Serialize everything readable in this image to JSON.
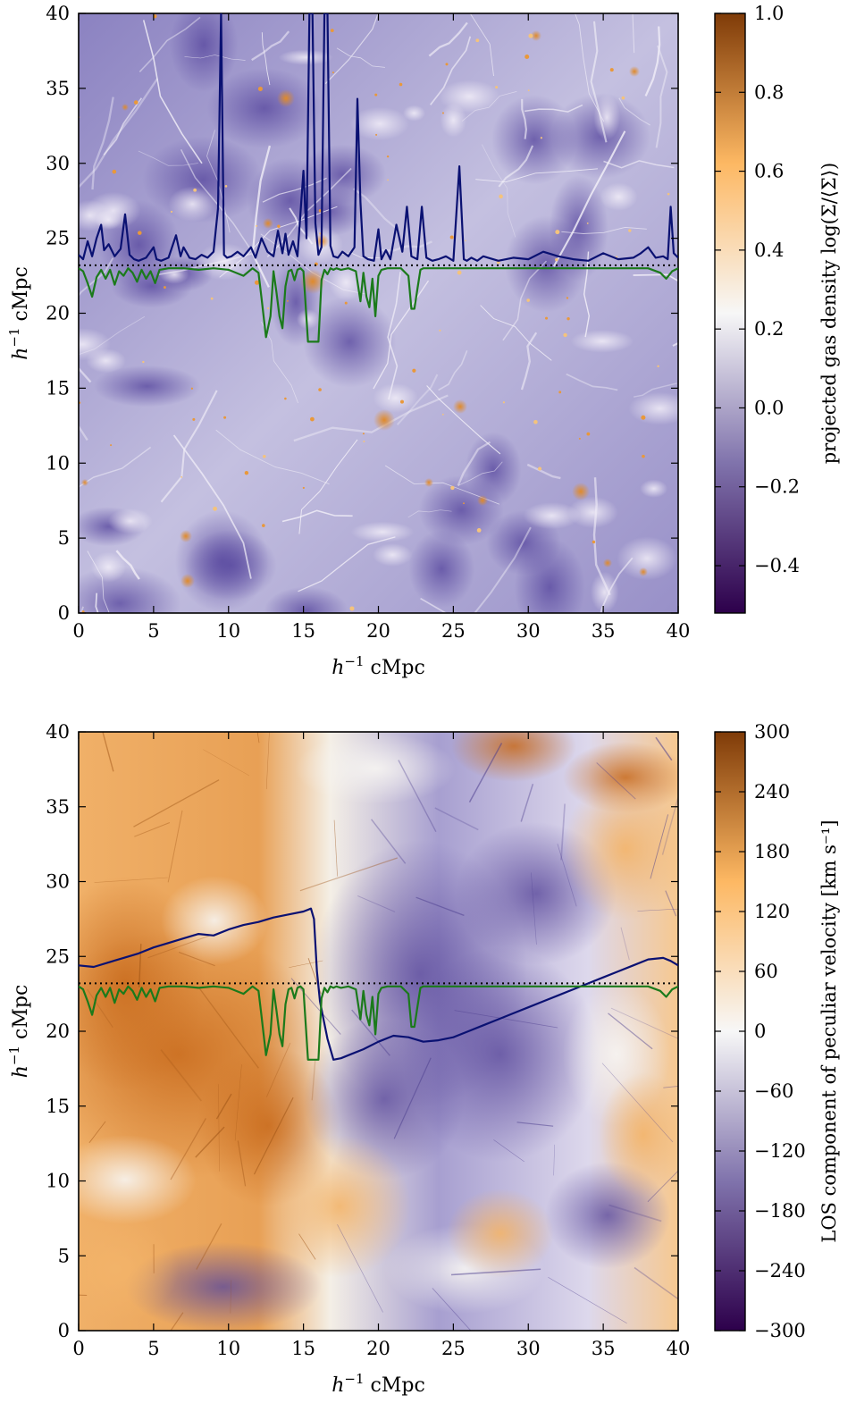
{
  "chart_data": [
    {
      "type": "heatmap",
      "title": "",
      "xlabel": "h^{-1} cMpc",
      "ylabel": "h^{-1} cMpc",
      "xlim": [
        0,
        40
      ],
      "ylim": [
        0,
        40
      ],
      "xticks": [
        "0",
        "5",
        "10",
        "15",
        "20",
        "25",
        "30",
        "35",
        "40"
      ],
      "yticks": [
        "0",
        "5",
        "10",
        "15",
        "20",
        "25",
        "30",
        "35",
        "40"
      ],
      "colorbar": {
        "label": "projected gas density log(Σ/⟨Σ⟩)",
        "range": [
          -0.52,
          1.0
        ],
        "ticks": [
          "−0.4",
          "−0.2",
          "0.0",
          "0.2",
          "0.4",
          "0.6",
          "0.8",
          "1.0"
        ],
        "tick_values": [
          -0.4,
          -0.2,
          0.0,
          0.2,
          0.4,
          0.6,
          0.8,
          1.0
        ],
        "colors": [
          "#2d004b",
          "#8073ac",
          "#f7f7f7",
          "#fdb863",
          "#7f3b08"
        ]
      },
      "sightline_y": 23.2,
      "series": [
        {
          "color": "#0a1172",
          "x": [
            0,
            0.3,
            0.6,
            0.9,
            1.2,
            1.5,
            1.7,
            2.0,
            2.4,
            2.8,
            3.1,
            3.4,
            3.7,
            4.0,
            4.5,
            5.0,
            5.2,
            5.5,
            6.0,
            6.5,
            6.8,
            7.0,
            7.4,
            7.8,
            8.2,
            8.6,
            9.0,
            9.3,
            9.5,
            9.7,
            9.9,
            10.2,
            10.6,
            11.0,
            11.5,
            11.8,
            12.2,
            12.6,
            13.0,
            13.3,
            13.6,
            13.8,
            14.0,
            14.3,
            14.6,
            15.0,
            15.2,
            15.4,
            15.6,
            15.8,
            16.0,
            16.2,
            16.4,
            16.6,
            16.8,
            17.0,
            17.3,
            17.6,
            18.0,
            18.4,
            18.6,
            18.8,
            19.0,
            19.3,
            19.7,
            20.0,
            20.2,
            20.5,
            20.8,
            21.2,
            21.6,
            21.9,
            22.2,
            22.6,
            22.9,
            23.2,
            23.6,
            24.0,
            24.5,
            25.0,
            25.4,
            25.7,
            25.9,
            26.2,
            26.6,
            27.0,
            28.0,
            29.0,
            30.0,
            31.0,
            32.0,
            33.0,
            34.0,
            35.0,
            36.0,
            37.0,
            37.5,
            38.0,
            38.5,
            39.0,
            39.3,
            39.5,
            39.7,
            40.0
          ],
          "y": [
            23.9,
            23.6,
            24.8,
            23.8,
            25.0,
            25.9,
            24.2,
            24.6,
            23.8,
            24.3,
            26.6,
            23.9,
            23.6,
            23.5,
            23.7,
            24.4,
            23.6,
            23.5,
            23.7,
            25.2,
            23.8,
            24.4,
            23.7,
            23.6,
            23.9,
            23.7,
            24.1,
            27.0,
            40.0,
            23.9,
            23.7,
            23.8,
            24.1,
            23.8,
            24.4,
            23.7,
            25.0,
            24.1,
            23.8,
            25.5,
            24.0,
            25.3,
            23.9,
            24.8,
            23.8,
            29.5,
            25.0,
            40.0,
            40.0,
            26.0,
            23.9,
            24.4,
            40.0,
            40.0,
            24.5,
            23.8,
            23.7,
            24.1,
            23.8,
            24.4,
            34.3,
            27.4,
            23.8,
            23.6,
            23.5,
            25.6,
            23.6,
            24.2,
            23.6,
            25.9,
            24.1,
            27.1,
            23.8,
            23.6,
            27.1,
            23.7,
            23.5,
            23.6,
            23.8,
            23.5,
            29.8,
            23.6,
            23.5,
            23.7,
            23.5,
            23.8,
            23.5,
            23.7,
            23.6,
            24.1,
            23.8,
            23.6,
            23.5,
            24.0,
            23.6,
            23.7,
            24.0,
            24.4,
            23.7,
            23.8,
            23.6,
            27.1,
            24.0,
            23.7
          ]
        },
        {
          "color": "#1b7a1b",
          "x": [
            0,
            0.3,
            0.6,
            0.9,
            1.2,
            1.5,
            1.8,
            2.1,
            2.4,
            2.7,
            3.0,
            3.3,
            3.6,
            3.9,
            4.2,
            4.5,
            4.8,
            5.1,
            5.4,
            6.0,
            7.0,
            8.0,
            9.0,
            10.0,
            11.0,
            11.6,
            12.0,
            12.2,
            12.5,
            12.8,
            13.0,
            13.2,
            13.4,
            13.6,
            13.8,
            14.0,
            14.2,
            14.4,
            14.6,
            14.8,
            15.0,
            15.3,
            15.6,
            15.8,
            16.0,
            16.2,
            16.4,
            16.6,
            16.8,
            17.0,
            17.2,
            17.5,
            18.0,
            18.5,
            18.8,
            19.0,
            19.2,
            19.4,
            19.6,
            19.8,
            20.0,
            20.2,
            20.6,
            21.0,
            21.5,
            22.0,
            22.2,
            22.4,
            22.6,
            22.8,
            23.0,
            23.5,
            24.0,
            26.0,
            28.0,
            30.0,
            32.0,
            34.0,
            36.0,
            38.0,
            38.8,
            39.2,
            39.6,
            40.0
          ],
          "y": [
            23.0,
            22.8,
            22.0,
            21.1,
            22.4,
            22.9,
            22.3,
            22.9,
            21.9,
            22.8,
            22.5,
            23.0,
            22.7,
            22.1,
            22.9,
            22.3,
            22.8,
            22.0,
            22.9,
            23.0,
            23.0,
            22.9,
            23.0,
            22.9,
            22.5,
            23.0,
            22.7,
            21.0,
            18.4,
            19.8,
            22.8,
            21.4,
            19.8,
            19.0,
            21.8,
            22.8,
            22.9,
            22.2,
            22.9,
            23.0,
            22.8,
            18.1,
            18.1,
            18.1,
            18.1,
            22.2,
            22.9,
            22.6,
            23.0,
            22.9,
            23.0,
            22.9,
            23.0,
            22.8,
            20.8,
            22.7,
            21.1,
            20.4,
            22.3,
            19.8,
            22.5,
            22.9,
            23.0,
            23.0,
            23.0,
            22.5,
            20.3,
            20.3,
            21.6,
            22.9,
            23.0,
            23.0,
            23.0,
            23.0,
            23.0,
            23.0,
            23.0,
            23.0,
            23.0,
            23.0,
            22.7,
            22.3,
            22.8,
            23.0
          ]
        }
      ]
    },
    {
      "type": "heatmap",
      "title": "",
      "xlabel": "h^{-1} cMpc",
      "ylabel": "h^{-1} cMpc",
      "xlim": [
        0,
        40
      ],
      "ylim": [
        0,
        40
      ],
      "xticks": [
        "0",
        "5",
        "10",
        "15",
        "20",
        "25",
        "30",
        "35",
        "40"
      ],
      "yticks": [
        "0",
        "5",
        "10",
        "15",
        "20",
        "25",
        "30",
        "35",
        "40"
      ],
      "colorbar": {
        "label": "LOS component of peculiar velocity [km s⁻¹]",
        "range": [
          -300,
          300
        ],
        "ticks": [
          "−300",
          "−240",
          "−180",
          "−120",
          "−60",
          "0",
          "60",
          "120",
          "180",
          "240",
          "300"
        ],
        "tick_values": [
          -300,
          -240,
          -180,
          -120,
          -60,
          0,
          60,
          120,
          180,
          240,
          300
        ],
        "colors": [
          "#2d004b",
          "#8073ac",
          "#f7f7f7",
          "#fdb863",
          "#7f3b08"
        ]
      },
      "sightline_y": 23.2,
      "series": [
        {
          "color": "#0a1172",
          "x": [
            0,
            1,
            2,
            3,
            4,
            5,
            6,
            7,
            8,
            9,
            10,
            11,
            12,
            13,
            14,
            15,
            15.5,
            15.7,
            15.9,
            16.1,
            16.3,
            16.6,
            17,
            17.5,
            18,
            19,
            20,
            21,
            22,
            23,
            24,
            25,
            26,
            27,
            28,
            29,
            30,
            31,
            32,
            33,
            34,
            35,
            36,
            37,
            38,
            39,
            39.5,
            40
          ],
          "y": [
            24.4,
            24.3,
            24.6,
            24.9,
            25.2,
            25.6,
            25.9,
            26.2,
            26.5,
            26.4,
            26.8,
            27.1,
            27.3,
            27.6,
            27.8,
            28.0,
            28.2,
            27.5,
            24.0,
            22.0,
            21.0,
            19.5,
            18.1,
            18.2,
            18.4,
            18.8,
            19.3,
            19.7,
            19.6,
            19.3,
            19.4,
            19.6,
            20.0,
            20.4,
            20.8,
            21.2,
            21.6,
            22.0,
            22.4,
            22.8,
            23.2,
            23.6,
            24.0,
            24.4,
            24.8,
            24.9,
            24.7,
            24.4
          ]
        },
        {
          "color": "#1b7a1b",
          "x": [
            0,
            0.3,
            0.6,
            0.9,
            1.2,
            1.5,
            1.8,
            2.1,
            2.4,
            2.7,
            3.0,
            3.3,
            3.6,
            3.9,
            4.2,
            4.5,
            4.8,
            5.1,
            5.4,
            6.0,
            7.0,
            8.0,
            9.0,
            10.0,
            11.0,
            11.6,
            12.0,
            12.2,
            12.5,
            12.8,
            13.0,
            13.2,
            13.4,
            13.6,
            13.8,
            14.0,
            14.2,
            14.4,
            14.6,
            14.8,
            15.0,
            15.3,
            15.6,
            15.8,
            16.0,
            16.2,
            16.4,
            16.6,
            16.8,
            17.0,
            17.2,
            17.5,
            18.0,
            18.5,
            18.8,
            19.0,
            19.2,
            19.4,
            19.6,
            19.8,
            20.0,
            20.2,
            20.6,
            21.0,
            21.5,
            22.0,
            22.2,
            22.4,
            22.6,
            22.8,
            23.0,
            23.5,
            24.0,
            26.0,
            28.0,
            30.0,
            32.0,
            34.0,
            36.0,
            38.0,
            38.8,
            39.2,
            39.6,
            40.0
          ],
          "y": [
            23.0,
            22.8,
            22.0,
            21.1,
            22.4,
            22.9,
            22.3,
            22.9,
            21.9,
            22.8,
            22.5,
            23.0,
            22.7,
            22.1,
            22.9,
            22.3,
            22.8,
            22.0,
            22.9,
            23.0,
            23.0,
            22.9,
            23.0,
            22.9,
            22.5,
            23.0,
            22.7,
            21.0,
            18.4,
            19.8,
            22.8,
            21.4,
            19.8,
            19.0,
            21.8,
            22.8,
            22.9,
            22.2,
            22.9,
            23.0,
            22.8,
            18.1,
            18.1,
            18.1,
            18.1,
            22.2,
            22.9,
            22.6,
            23.0,
            22.9,
            23.0,
            22.9,
            23.0,
            22.8,
            20.8,
            22.7,
            21.1,
            20.4,
            22.3,
            19.8,
            22.5,
            22.9,
            23.0,
            23.0,
            23.0,
            22.5,
            20.3,
            20.3,
            21.6,
            22.9,
            23.0,
            23.0,
            23.0,
            23.0,
            23.0,
            23.0,
            23.0,
            23.0,
            23.0,
            23.0,
            22.7,
            22.3,
            22.8,
            23.0
          ]
        }
      ]
    }
  ]
}
